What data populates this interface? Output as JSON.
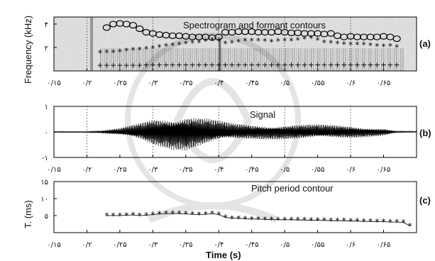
{
  "chart_data": [
    {
      "type": "heatmap",
      "title": "Spectrogram and formant contours",
      "panel_label": "(a)",
      "ylabel": "Frequency (kHz)",
      "xlim": [
        0.15,
        0.7
      ],
      "ylim": [
        0,
        4.6
      ],
      "ytick_labels": [
        {
          "value": 2,
          "label": "۲"
        },
        {
          "value": 4,
          "label": "۴"
        }
      ],
      "xtick_labels": [
        {
          "value": 0.15,
          "label": "۰/۱۵"
        },
        {
          "value": 0.2,
          "label": "۰/۲"
        },
        {
          "value": 0.25,
          "label": "۰/۲۵"
        },
        {
          "value": 0.3,
          "label": "۰/۳"
        },
        {
          "value": 0.35,
          "label": "۰/۳۵"
        },
        {
          "value": 0.4,
          "label": "۰/۴"
        },
        {
          "value": 0.45,
          "label": "۰/۴۵"
        },
        {
          "value": 0.5,
          "label": "۰/۵"
        },
        {
          "value": 0.55,
          "label": "۰/۵۵"
        },
        {
          "value": 0.6,
          "label": "۰/۶"
        },
        {
          "value": 0.65,
          "label": "۰/۶۵"
        }
      ],
      "vlines": [
        0.2,
        0.3,
        0.4,
        0.5,
        0.6
      ],
      "series": [
        {
          "marker": "circle",
          "x": [
            0.23,
            0.24,
            0.25,
            0.26,
            0.27,
            0.28,
            0.29,
            0.3,
            0.31,
            0.32,
            0.33,
            0.34,
            0.35,
            0.36,
            0.37,
            0.38,
            0.39,
            0.4,
            0.41,
            0.42,
            0.43,
            0.44,
            0.45,
            0.46,
            0.47,
            0.48,
            0.49,
            0.5,
            0.51,
            0.52,
            0.53,
            0.54,
            0.55,
            0.56,
            0.57,
            0.58,
            0.59,
            0.6,
            0.61,
            0.62,
            0.63,
            0.64,
            0.65,
            0.66,
            0.67
          ],
          "y": [
            3.7,
            4.0,
            4.05,
            4.0,
            3.9,
            3.6,
            3.3,
            3.2,
            3.1,
            3.05,
            3.0,
            3.0,
            2.95,
            2.9,
            2.9,
            2.9,
            2.85,
            2.9,
            3.3,
            3.3,
            3.35,
            3.35,
            3.35,
            3.3,
            3.3,
            3.3,
            3.35,
            3.3,
            3.25,
            3.25,
            3.2,
            3.2,
            3.2,
            3.15,
            3.2,
            3.0,
            2.9,
            2.95,
            2.9,
            2.9,
            2.9,
            2.9,
            2.95,
            2.9,
            2.75
          ]
        },
        {
          "marker": "star",
          "x": [
            0.22,
            0.23,
            0.24,
            0.25,
            0.26,
            0.27,
            0.28,
            0.29,
            0.3,
            0.31,
            0.32,
            0.33,
            0.34,
            0.35,
            0.36,
            0.37,
            0.38,
            0.39,
            0.4,
            0.41,
            0.42,
            0.43,
            0.44,
            0.45,
            0.46,
            0.47,
            0.48,
            0.49,
            0.5,
            0.51,
            0.52,
            0.53,
            0.54,
            0.55,
            0.56,
            0.57,
            0.58,
            0.59,
            0.6,
            0.61,
            0.62,
            0.63,
            0.64,
            0.65,
            0.66,
            0.67
          ],
          "y": [
            1.5,
            1.55,
            1.55,
            1.6,
            1.7,
            1.75,
            1.8,
            1.85,
            1.9,
            2.0,
            2.1,
            2.15,
            2.2,
            2.3,
            2.35,
            2.4,
            2.5,
            2.6,
            2.5,
            2.3,
            2.35,
            2.45,
            2.55,
            2.55,
            2.55,
            2.5,
            2.45,
            2.5,
            2.55,
            2.55,
            2.6,
            2.7,
            2.75,
            2.6,
            2.4,
            2.35,
            2.3,
            2.25,
            2.2,
            2.2,
            2.2,
            2.15,
            2.1,
            2.05,
            2.1,
            2.0
          ]
        },
        {
          "marker": "plus",
          "x": [
            0.22,
            0.23,
            0.24,
            0.25,
            0.26,
            0.27,
            0.28,
            0.29,
            0.3,
            0.31,
            0.32,
            0.33,
            0.34,
            0.35,
            0.36,
            0.37,
            0.38,
            0.39,
            0.4,
            0.41,
            0.42,
            0.43,
            0.44,
            0.45,
            0.46,
            0.47,
            0.48,
            0.49,
            0.5,
            0.51,
            0.52,
            0.53,
            0.54,
            0.55,
            0.56,
            0.57,
            0.58,
            0.59,
            0.6,
            0.61,
            0.62,
            0.63,
            0.64,
            0.65,
            0.66,
            0.67
          ],
          "y": [
            0.5,
            0.5,
            0.5,
            0.5,
            0.5,
            0.5,
            0.5,
            0.55,
            0.55,
            0.55,
            0.55,
            0.55,
            0.55,
            0.55,
            0.55,
            0.55,
            0.55,
            0.55,
            0.55,
            0.55,
            0.55,
            0.55,
            0.55,
            0.55,
            0.55,
            0.55,
            0.55,
            0.55,
            0.55,
            0.55,
            0.55,
            0.55,
            0.55,
            0.55,
            0.55,
            0.55,
            0.55,
            0.55,
            0.55,
            0.55,
            0.55,
            0.55,
            0.55,
            0.55,
            0.55,
            0.55
          ]
        }
      ]
    },
    {
      "type": "line",
      "title": "Signal",
      "panel_label": "(b)",
      "xlim": [
        0.15,
        0.7
      ],
      "ylim": [
        -1,
        1
      ],
      "ytick_labels": [
        {
          "value": -1,
          "label": "-۱"
        },
        {
          "value": 0,
          "label": "۰"
        },
        {
          "value": 1,
          "label": "۱"
        }
      ],
      "xtick_labels": [
        {
          "value": 0.15,
          "label": "۰/۱۵"
        },
        {
          "value": 0.2,
          "label": "۰/۲"
        },
        {
          "value": 0.25,
          "label": "۰/۲۵"
        },
        {
          "value": 0.3,
          "label": "۰/۳"
        },
        {
          "value": 0.35,
          "label": "۰/۳۵"
        },
        {
          "value": 0.4,
          "label": "۰/۴"
        },
        {
          "value": 0.45,
          "label": "۰/۴۵"
        },
        {
          "value": 0.5,
          "label": "۰/۵"
        },
        {
          "value": 0.55,
          "label": "۰/۵۵"
        },
        {
          "value": 0.6,
          "label": "۰/۶"
        },
        {
          "value": 0.65,
          "label": "۰/۶۵"
        }
      ],
      "vlines": [
        0.2,
        0.3,
        0.4,
        0.5,
        0.6
      ],
      "envelope": {
        "x": [
          0.15,
          0.2,
          0.22,
          0.25,
          0.28,
          0.3,
          0.33,
          0.35,
          0.37,
          0.4,
          0.42,
          0.45,
          0.5,
          0.55,
          0.6,
          0.65,
          0.67,
          0.7
        ],
        "amplitude": [
          0.02,
          0.02,
          0.05,
          0.15,
          0.35,
          0.55,
          0.7,
          0.75,
          0.62,
          0.45,
          0.35,
          0.3,
          0.3,
          0.3,
          0.25,
          0.15,
          0.03,
          0.02
        ]
      }
    },
    {
      "type": "scatter",
      "title": "Pitch period contour",
      "panel_label": "(c)",
      "ylabel": "T. (ms)",
      "xlabel": "Time (s)",
      "xlim": [
        0.15,
        0.7
      ],
      "ylim": [
        0,
        15
      ],
      "ytick_labels": [
        {
          "value": 5,
          "label": "۵"
        },
        {
          "value": 10,
          "label": "۱۰"
        },
        {
          "value": 15,
          "label": "۱۵"
        }
      ],
      "xtick_labels": [
        {
          "value": 0.15,
          "label": "۰/۱۵"
        },
        {
          "value": 0.2,
          "label": "۰/۲"
        },
        {
          "value": 0.25,
          "label": "۰/۲۵"
        },
        {
          "value": 0.3,
          "label": "۰/۳"
        },
        {
          "value": 0.35,
          "label": "۰/۳۵"
        },
        {
          "value": 0.4,
          "label": "۰/۴"
        },
        {
          "value": 0.45,
          "label": "۰/۴۵"
        },
        {
          "value": 0.5,
          "label": "۰/۵"
        },
        {
          "value": 0.55,
          "label": "۰/۵۵"
        },
        {
          "value": 0.6,
          "label": "۰/۶"
        },
        {
          "value": 0.65,
          "label": "۰/۶۵"
        }
      ],
      "series": [
        {
          "marker": "star",
          "x": [
            0.23,
            0.24,
            0.25,
            0.26,
            0.27,
            0.28,
            0.29,
            0.3,
            0.31,
            0.32,
            0.33,
            0.34,
            0.35,
            0.36,
            0.37,
            0.38,
            0.39,
            0.4,
            0.41,
            0.42,
            0.43,
            0.44,
            0.45,
            0.46,
            0.47,
            0.48,
            0.49,
            0.5,
            0.51,
            0.52,
            0.53,
            0.54,
            0.55,
            0.56,
            0.57,
            0.58,
            0.59,
            0.6,
            0.61,
            0.62,
            0.63,
            0.64,
            0.65,
            0.66,
            0.67,
            0.68,
            0.69
          ],
          "y": [
            5.0,
            5.0,
            5.0,
            5.1,
            5.2,
            5.0,
            5.1,
            5.3,
            5.5,
            5.6,
            5.6,
            5.6,
            5.5,
            5.4,
            5.3,
            5.4,
            5.6,
            5.3,
            4.5,
            4.2,
            4.2,
            4.1,
            4.0,
            4.0,
            3.9,
            3.9,
            3.8,
            3.8,
            3.8,
            3.7,
            3.7,
            3.6,
            3.6,
            3.6,
            3.5,
            3.5,
            3.5,
            3.4,
            3.4,
            3.3,
            3.3,
            3.2,
            3.2,
            3.1,
            3.1,
            3.0,
            2.0
          ]
        }
      ]
    }
  ]
}
